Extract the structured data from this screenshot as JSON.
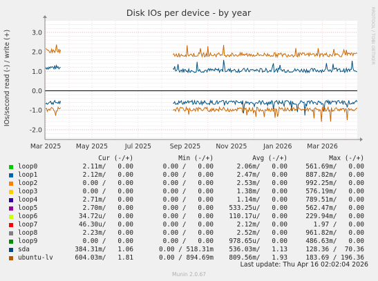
{
  "chart_data": {
    "type": "line",
    "title": "Disk IOs per device - by year",
    "ylabel": "IOs/second read (-) / write (+)",
    "watermark": "RRDTOOL / TOBI OETIKER",
    "ylim": [
      -2.5,
      3.6
    ],
    "y_ticks": [
      {
        "value": 3,
        "label": "3.0"
      },
      {
        "value": 2,
        "label": "2.0"
      },
      {
        "value": 1,
        "label": "1.0"
      },
      {
        "value": 0,
        "label": "0.0"
      },
      {
        "value": -1,
        "label": "-1.0"
      },
      {
        "value": -2,
        "label": "-2.0"
      }
    ],
    "x_ticks": [
      "Mar 2025",
      "May 2025",
      "Jul 2025",
      "Sep 2025",
      "Nov 2025",
      "Jan 2026",
      "Mar 2026"
    ],
    "x_range": [
      "2025-02-28",
      "2026-04-16"
    ],
    "grid": true,
    "series": [
      {
        "name": "sda",
        "color": "#00507f",
        "segments": [
          {
            "start": "2025-03-01",
            "end": "2025-03-21",
            "write_level": 1.2,
            "read_level": -0.6
          },
          {
            "start": "2025-08-16",
            "end": "2026-04-16",
            "write_level": 1.05,
            "read_level": -0.6
          }
        ]
      },
      {
        "name": "ubuntu-lv",
        "color": "#cc6600",
        "segments": [
          {
            "start": "2025-03-01",
            "end": "2025-03-21",
            "write_level": 2.05,
            "read_level": -0.95
          },
          {
            "start": "2025-08-16",
            "end": "2026-04-16",
            "write_level": 1.85,
            "read_level": -0.95
          }
        ]
      }
    ]
  },
  "legend": {
    "headers": {
      "cur": "Cur (-/+)",
      "min": "Min (-/+)",
      "avg": "Avg (-/+)",
      "max": "Max (-/+)"
    },
    "rows": [
      {
        "name": "loop0",
        "color": "#00cc00",
        "cur": "2.11m/   0.00",
        "min": "0.00 /   0.00",
        "avg": "2.06m/   0.00",
        "max": "561.69m/   0.00"
      },
      {
        "name": "loop1",
        "color": "#0066b3",
        "cur": "2.12m/   0.00",
        "min": "0.00 /   0.00",
        "avg": "2.47m/   0.00",
        "max": "887.82m/   0.00"
      },
      {
        "name": "loop2",
        "color": "#ff8000",
        "cur": "0.00 /   0.00",
        "min": "0.00 /   0.00",
        "avg": "2.53m/   0.00",
        "max": "992.25m/   0.00"
      },
      {
        "name": "loop3",
        "color": "#ffcc00",
        "cur": "0.00 /   0.00",
        "min": "0.00 /   0.00",
        "avg": "1.38m/   0.00",
        "max": "576.19m/   0.00"
      },
      {
        "name": "loop4",
        "color": "#330099",
        "cur": "2.71m/   0.00",
        "min": "0.00 /   0.00",
        "avg": "1.14m/   0.00",
        "max": "789.51m/   0.00"
      },
      {
        "name": "loop5",
        "color": "#990099",
        "cur": "2.70m/   0.00",
        "min": "0.00 /   0.00",
        "avg": "533.25u/   0.00",
        "max": "562.47m/   0.00"
      },
      {
        "name": "loop6",
        "color": "#ccff00",
        "cur": "34.72u/   0.00",
        "min": "0.00 /   0.00",
        "avg": "110.17u/   0.00",
        "max": "229.94m/   0.00"
      },
      {
        "name": "loop7",
        "color": "#ff0000",
        "cur": "46.30u/   0.00",
        "min": "0.00 /   0.00",
        "avg": "2.12m/   0.00",
        "max": "1.97 /   0.00"
      },
      {
        "name": "loop8",
        "color": "#808080",
        "cur": "2.23m/   0.00",
        "min": "0.00 /   0.00",
        "avg": "2.52m/   0.00",
        "max": "961.82m/   0.00"
      },
      {
        "name": "loop9",
        "color": "#008f00",
        "cur": "0.00 /   0.00",
        "min": "0.00 /   0.00",
        "avg": "978.65u/   0.00",
        "max": "486.63m/   0.00"
      },
      {
        "name": "sda",
        "color": "#00487d",
        "cur": "384.31m/   1.06",
        "min": "0.00 / 518.31m",
        "avg": "536.03m/   1.13",
        "max": "128.36 /  70.36"
      },
      {
        "name": "ubuntu-lv",
        "color": "#b35a00",
        "cur": "604.03m/   1.81",
        "min": "0.00 / 894.69m",
        "avg": "809.56m/   1.93",
        "max": "183.69 / 196.36"
      }
    ]
  },
  "last_update": "Last update: Thu Apr 16 02:02:04 2026",
  "footer": "Munin 2.0.67"
}
